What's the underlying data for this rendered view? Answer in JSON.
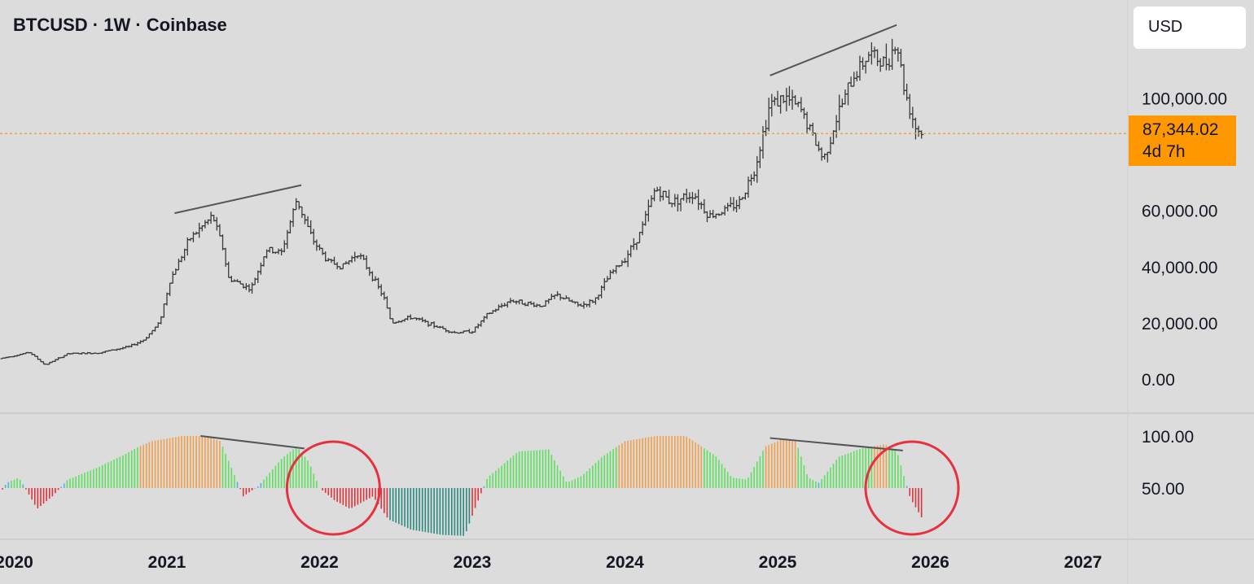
{
  "header": {
    "title": "BTCUSD · 1W · Coinbase"
  },
  "currency_selector": {
    "label": "USD"
  },
  "last_price": {
    "value": "87,344.02",
    "countdown": "4d 7h",
    "color": "#ff9800"
  },
  "colors": {
    "background": "#dcdcdc",
    "candle": "#3a3a3a",
    "trendline": "#555555",
    "osc_orange": "#f0a04b",
    "osc_green": "#5ee05e",
    "osc_red": "#e0323a",
    "osc_teal": "#2a8a80",
    "osc_blue": "#4fb3e8",
    "circle": "#e53240"
  },
  "chart_data": [
    {
      "type": "bar",
      "name": "price",
      "xlabel": "",
      "ylabel": "",
      "x_ticks": [
        "2020",
        "2021",
        "2022",
        "2023",
        "2024",
        "2025",
        "2026",
        "2027"
      ],
      "y_ticks": [
        "100,000.00",
        "60,000.00",
        "40,000.00",
        "20,000.00",
        "0.00"
      ],
      "x_axis_years": [
        2020,
        2021,
        2022,
        2023,
        2024,
        2025,
        2026,
        2027
      ],
      "last_price": 87344.02,
      "anchors": [
        [
          2019.75,
          7500
        ],
        [
          2019.9,
          7200
        ],
        [
          2020.1,
          9500
        ],
        [
          2020.2,
          5000
        ],
        [
          2020.35,
          9000
        ],
        [
          2020.55,
          9300
        ],
        [
          2020.75,
          11500
        ],
        [
          2020.85,
          14000
        ],
        [
          2020.95,
          20000
        ],
        [
          2021.02,
          35000
        ],
        [
          2021.15,
          50000
        ],
        [
          2021.3,
          58000
        ],
        [
          2021.37,
          46000
        ],
        [
          2021.4,
          36000
        ],
        [
          2021.55,
          32000
        ],
        [
          2021.65,
          46000
        ],
        [
          2021.75,
          45000
        ],
        [
          2021.85,
          64000
        ],
        [
          2021.95,
          50000
        ],
        [
          2022.05,
          42000
        ],
        [
          2022.15,
          40000
        ],
        [
          2022.25,
          45000
        ],
        [
          2022.33,
          38000
        ],
        [
          2022.42,
          29000
        ],
        [
          2022.47,
          20000
        ],
        [
          2022.6,
          22000
        ],
        [
          2022.75,
          19000
        ],
        [
          2022.88,
          16500
        ],
        [
          2023.0,
          17000
        ],
        [
          2023.1,
          23000
        ],
        [
          2023.25,
          28000
        ],
        [
          2023.45,
          26000
        ],
        [
          2023.55,
          30000
        ],
        [
          2023.7,
          26000
        ],
        [
          2023.8,
          28000
        ],
        [
          2023.9,
          37000
        ],
        [
          2024.0,
          43000
        ],
        [
          2024.1,
          52000
        ],
        [
          2024.2,
          68000
        ],
        [
          2024.3,
          63000
        ],
        [
          2024.45,
          66000
        ],
        [
          2024.55,
          58000
        ],
        [
          2024.65,
          60000
        ],
        [
          2024.75,
          63000
        ],
        [
          2024.85,
          75000
        ],
        [
          2024.95,
          98000
        ],
        [
          2025.05,
          100000
        ],
        [
          2025.15,
          96000
        ],
        [
          2025.25,
          84000
        ],
        [
          2025.3,
          78000
        ],
        [
          2025.4,
          95000
        ],
        [
          2025.5,
          108000
        ],
        [
          2025.6,
          116000
        ],
        [
          2025.7,
          112000
        ],
        [
          2025.78,
          120000
        ],
        [
          2025.83,
          103000
        ],
        [
          2025.9,
          90000
        ],
        [
          2025.95,
          87000
        ]
      ],
      "trendlines": [
        {
          "x": [
            2021.05,
            2021.88
          ],
          "y": [
            59000,
            69000
          ]
        },
        {
          "x": [
            2024.95,
            2025.78
          ],
          "y": [
            108000,
            126000
          ]
        }
      ]
    },
    {
      "type": "bar",
      "name": "oscillator",
      "xlabel": "",
      "ylabel": "",
      "y_ticks": [
        "100.00",
        "50.00"
      ],
      "baseline": 50,
      "anchors": [
        [
          2019.75,
          40
        ],
        [
          2019.88,
          38
        ],
        [
          2019.95,
          55
        ],
        [
          2020.03,
          60
        ],
        [
          2020.08,
          48
        ],
        [
          2020.15,
          30
        ],
        [
          2020.25,
          42
        ],
        [
          2020.35,
          58
        ],
        [
          2020.55,
          70
        ],
        [
          2020.72,
          82
        ],
        [
          2020.82,
          90
        ],
        [
          2020.9,
          95
        ],
        [
          2021.1,
          100
        ],
        [
          2021.25,
          100
        ],
        [
          2021.35,
          95
        ],
        [
          2021.45,
          60
        ],
        [
          2021.5,
          42
        ],
        [
          2021.6,
          52
        ],
        [
          2021.75,
          78
        ],
        [
          2021.85,
          90
        ],
        [
          2021.93,
          75
        ],
        [
          2022.0,
          50
        ],
        [
          2022.1,
          38
        ],
        [
          2022.2,
          30
        ],
        [
          2022.35,
          42
        ],
        [
          2022.45,
          20
        ],
        [
          2022.6,
          10
        ],
        [
          2022.8,
          5
        ],
        [
          2022.95,
          4
        ],
        [
          2023.03,
          35
        ],
        [
          2023.1,
          60
        ],
        [
          2023.3,
          85
        ],
        [
          2023.5,
          87
        ],
        [
          2023.62,
          55
        ],
        [
          2023.72,
          62
        ],
        [
          2023.85,
          80
        ],
        [
          2024.0,
          95
        ],
        [
          2024.2,
          100
        ],
        [
          2024.4,
          100
        ],
        [
          2024.5,
          90
        ],
        [
          2024.6,
          80
        ],
        [
          2024.7,
          60
        ],
        [
          2024.8,
          58
        ],
        [
          2024.92,
          90
        ],
        [
          2025.05,
          98
        ],
        [
          2025.12,
          95
        ],
        [
          2025.2,
          60
        ],
        [
          2025.27,
          55
        ],
        [
          2025.4,
          80
        ],
        [
          2025.55,
          88
        ],
        [
          2025.7,
          92
        ],
        [
          2025.78,
          86
        ],
        [
          2025.83,
          60
        ],
        [
          2025.87,
          40
        ],
        [
          2025.95,
          20
        ]
      ],
      "trendlines": [
        {
          "x": [
            2021.22,
            2021.9
          ],
          "y": [
            100,
            88
          ]
        },
        {
          "x": [
            2024.95,
            2025.82
          ],
          "y": [
            98,
            86
          ]
        }
      ],
      "highlights": [
        {
          "label": "circle-2022",
          "x": 2022.09,
          "y": 50
        },
        {
          "label": "circle-2026",
          "x": 2025.88,
          "y": 50
        }
      ]
    }
  ]
}
